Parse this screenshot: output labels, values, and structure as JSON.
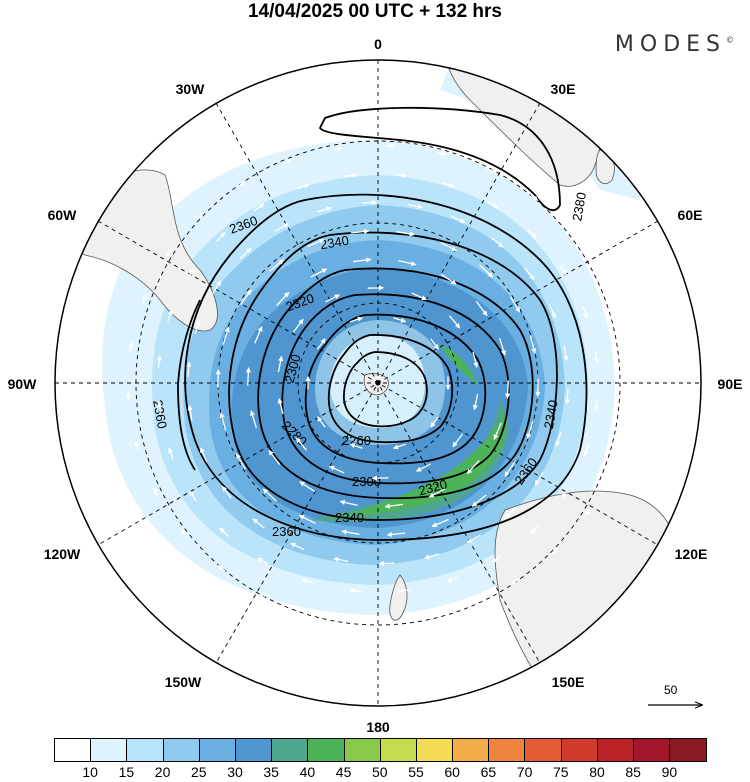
{
  "title": "14/04/2025  00 UTC  + 132 hrs",
  "brand": "MODES",
  "brand_mark": "©",
  "lon_labels": [
    "0",
    "30E",
    "60E",
    "90E",
    "120E",
    "150E",
    "180",
    "150W",
    "120W",
    "90W",
    "60W",
    "30W"
  ],
  "contour_labels": [
    "2360",
    "2340",
    "2320",
    "2300",
    "2280",
    "2260",
    "2300",
    "2320",
    "2340",
    "2360",
    "2360",
    "2340",
    "2360",
    "2380"
  ],
  "reference_vector": {
    "label": "50",
    "value": 50
  },
  "colorbar": {
    "colors": [
      "#ffffff",
      "#def3fd",
      "#b9e4f9",
      "#90cbef",
      "#6aafe2",
      "#4f95cf",
      "#4ea68e",
      "#4cb358",
      "#8bc94a",
      "#c6dc4e",
      "#f4db55",
      "#f3ae4b",
      "#ef8440",
      "#e45b34",
      "#d33a2e",
      "#bb2228",
      "#a3162b",
      "#8a1b22"
    ],
    "ticks": [
      "10",
      "15",
      "20",
      "25",
      "30",
      "35",
      "40",
      "45",
      "50",
      "55",
      "60",
      "65",
      "70",
      "75",
      "80",
      "85",
      "90"
    ]
  },
  "colors": {
    "land": "#f0f0f0",
    "coast": "#555555",
    "contour": "#000000",
    "arrow": "#ffffff"
  }
}
